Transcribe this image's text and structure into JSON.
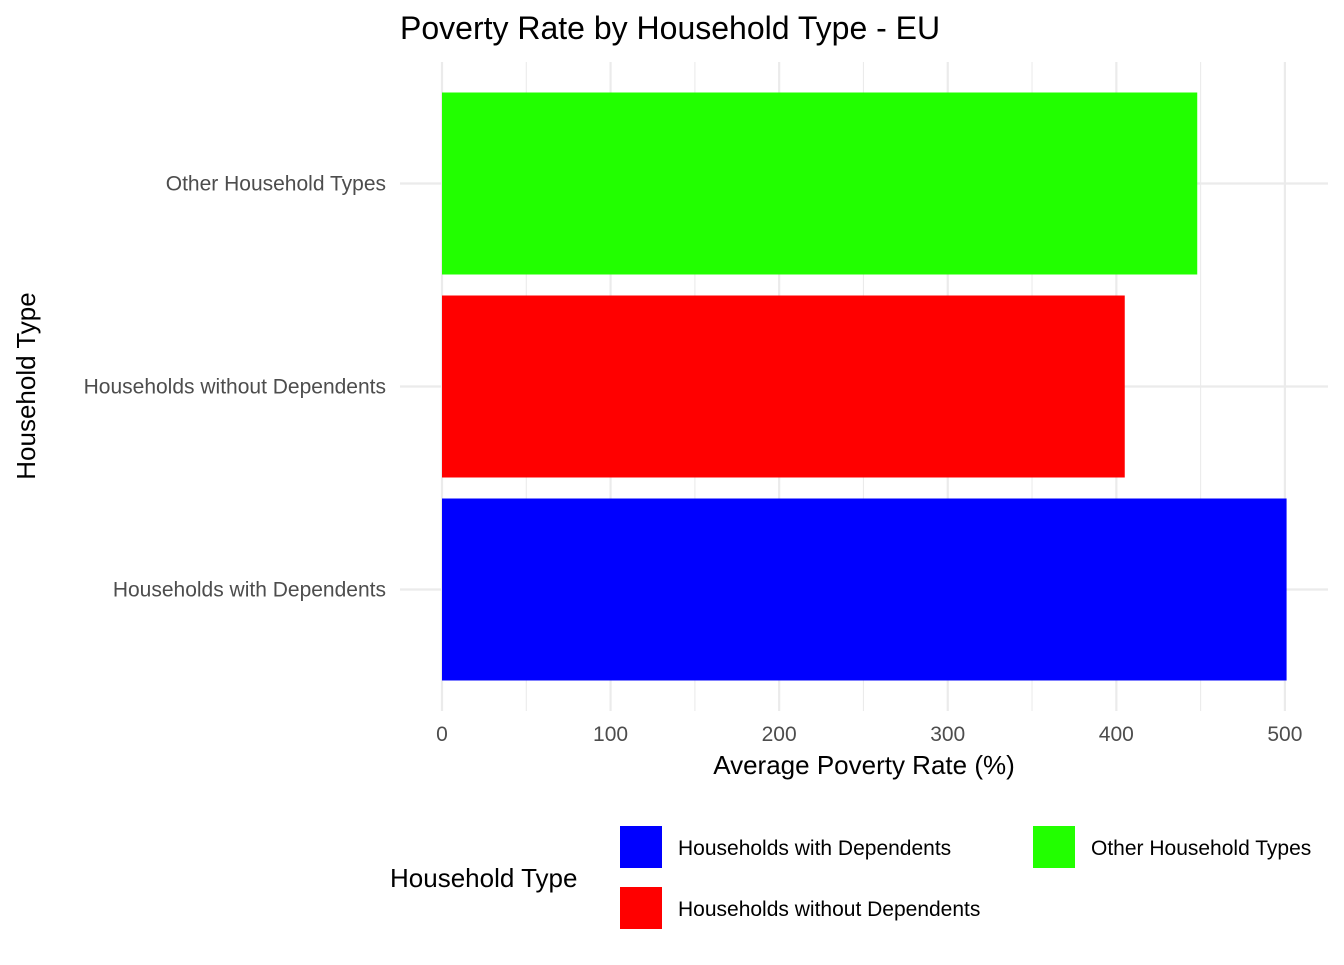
{
  "chart_data": {
    "type": "bar",
    "orientation": "horizontal",
    "title": "Poverty Rate by Household Type - EU",
    "xlabel": "Average Poverty Rate (%)",
    "ylabel": "Household Type",
    "categories": [
      "Households with Dependents",
      "Households without Dependents",
      "Other Household Types"
    ],
    "values": [
      501,
      405,
      448
    ],
    "colors": [
      "#0000ff",
      "#ff0000",
      "#22ff00"
    ],
    "xlim": [
      0,
      500
    ],
    "xticks": [
      "0",
      "100",
      "200",
      "300",
      "400",
      "500"
    ],
    "grid": true,
    "legend": {
      "title": "Household Type",
      "placement": "bottom",
      "entries": [
        "Households with Dependents",
        "Households without Dependents",
        "Other Household Types"
      ]
    }
  }
}
